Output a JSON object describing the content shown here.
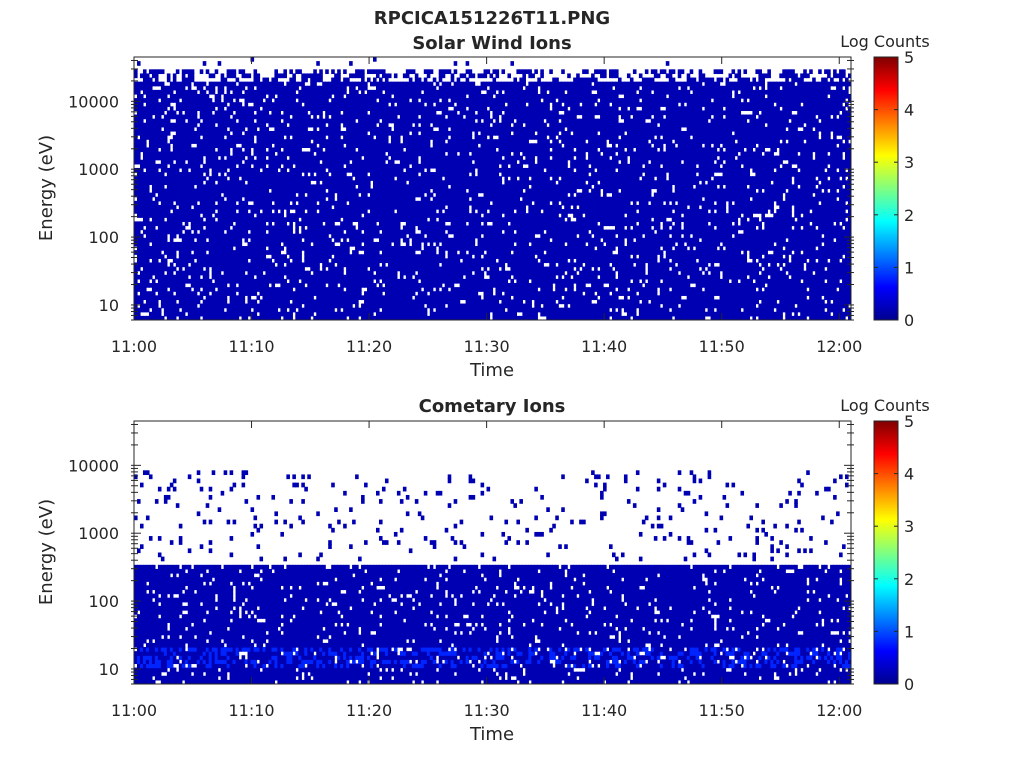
{
  "figure": {
    "title": "RPCICA151226T11.PNG"
  },
  "chart_data": [
    {
      "type": "heatmap",
      "title": "Solar Wind Ions",
      "xlabel": "Time",
      "ylabel": "Energy (eV)",
      "x_ticks": [
        "11:00",
        "11:10",
        "11:20",
        "11:30",
        "11:40",
        "11:50",
        "12:00"
      ],
      "x_range": [
        "11:00",
        "12:01"
      ],
      "y_scale": "log",
      "y_ticks": [
        10,
        100,
        1000,
        10000
      ],
      "y_tick_labels": [
        "10",
        "100",
        "1000",
        "10000"
      ],
      "y_range": [
        6,
        45000
      ],
      "colorbar": {
        "label": "Log Counts",
        "range": [
          0,
          5
        ],
        "ticks": [
          "0",
          "1",
          "2",
          "3",
          "4",
          "5"
        ],
        "colormap": "jet"
      },
      "grid": false,
      "value_summary": {
        "dominant_log_counts": 0.2,
        "filled_energy_band_eV": [
          6,
          30000
        ],
        "sparse_above_eV": 20000,
        "note_colors": {
          "low": "#00008f",
          "background_no_data": "#ffffff"
        }
      }
    },
    {
      "type": "heatmap",
      "title": "Cometary Ions",
      "xlabel": "Time",
      "ylabel": "Energy (eV)",
      "x_ticks": [
        "11:00",
        "11:10",
        "11:20",
        "11:30",
        "11:40",
        "11:50",
        "12:00"
      ],
      "x_range": [
        "11:00",
        "12:01"
      ],
      "y_scale": "log",
      "y_ticks": [
        10,
        100,
        1000,
        10000
      ],
      "y_tick_labels": [
        "10",
        "100",
        "1000",
        "10000"
      ],
      "y_range": [
        6,
        45000
      ],
      "colorbar": {
        "label": "Log Counts",
        "range": [
          0,
          5
        ],
        "ticks": [
          "0",
          "1",
          "2",
          "3",
          "4",
          "5"
        ],
        "colormap": "jet"
      },
      "grid": false,
      "value_summary": {
        "dominant_log_counts": 0.2,
        "filled_energy_band_eV": [
          6,
          350
        ],
        "enhanced_band_eV": [
          10,
          20
        ],
        "enhanced_log_counts": 0.8,
        "sparse_between_eV": [
          400,
          8000
        ],
        "note_colors": {
          "low": "#00008f",
          "enhanced": "#1a3cff",
          "background_no_data": "#ffffff"
        }
      }
    }
  ]
}
